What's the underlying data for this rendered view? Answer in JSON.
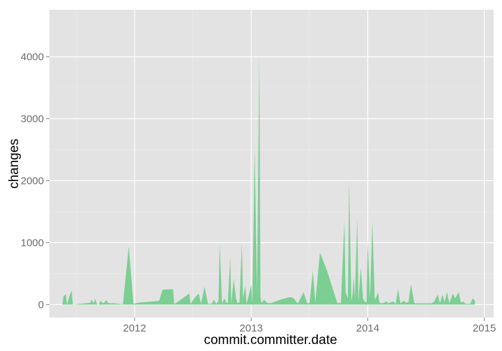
{
  "chart_data": {
    "type": "area",
    "title": "",
    "xlabel": "commit.committer.date",
    "ylabel": "changes",
    "x_ticks": [
      "2012",
      "2013",
      "2014",
      "2015"
    ],
    "y_ticks": [
      "0",
      "1000",
      "2000",
      "3000",
      "4000"
    ],
    "xlim": [
      2011.27,
      2015.08
    ],
    "ylim": [
      -210,
      4760
    ],
    "grid": true,
    "legend": "none",
    "colors": {
      "fill": "#7bcf92",
      "panel": "#e3e3e3",
      "grid_major": "#ffffff",
      "grid_minor": "#ececec"
    },
    "series": [
      {
        "x": [
          2011.38,
          2011.39,
          2011.41,
          2011.42,
          2011.44,
          2011.46,
          2011.47,
          2011.5,
          2011.62,
          2011.63,
          2011.65,
          2011.66,
          2011.68,
          2011.69,
          2011.71,
          2011.73,
          2011.76,
          2011.77,
          2011.79,
          2011.81,
          2011.83,
          2011.85,
          2011.9,
          2011.95,
          2011.99,
          2012.01,
          2012.03,
          2012.21,
          2012.24,
          2012.33,
          2012.34,
          2012.47,
          2012.48,
          2012.52,
          2012.55,
          2012.57,
          2012.6,
          2012.63,
          2012.66,
          2012.68,
          2012.7,
          2012.72,
          2012.73,
          2012.75,
          2012.77,
          2012.79,
          2012.8,
          2012.82,
          2012.83,
          2012.85,
          2012.87,
          2012.88,
          2012.9,
          2012.92,
          2012.93,
          2012.95,
          2012.96,
          2012.98,
          2013.0,
          2013.01,
          2013.03,
          2013.05,
          2013.07,
          2013.08,
          2013.09,
          2013.11,
          2013.13,
          2013.15,
          2013.18,
          2013.25,
          2013.33,
          2013.36,
          2013.4,
          2013.45,
          2013.48,
          2013.5,
          2013.53,
          2013.55,
          2013.59,
          2013.65,
          2013.74,
          2013.77,
          2013.8,
          2013.81,
          2013.83,
          2013.84,
          2013.86,
          2013.87,
          2013.88,
          2013.89,
          2013.91,
          2013.92,
          2013.94,
          2013.96,
          2013.97,
          2013.99,
          2014.0,
          2014.02,
          2014.04,
          2014.06,
          2014.08,
          2014.09,
          2014.1,
          2014.12,
          2014.14,
          2014.16,
          2014.18,
          2014.2,
          2014.22,
          2014.24,
          2014.26,
          2014.28,
          2014.31,
          2014.33,
          2014.35,
          2014.37,
          2014.4,
          2014.53,
          2014.55,
          2014.57,
          2014.6,
          2014.62,
          2014.64,
          2014.66,
          2014.68,
          2014.7,
          2014.73,
          2014.75,
          2014.78,
          2014.8,
          2014.82,
          2014.84,
          2014.88,
          2014.9,
          2014.92
        ],
        "y": [
          0,
          130,
          170,
          0,
          130,
          230,
          0,
          5,
          30,
          80,
          20,
          90,
          0,
          0,
          60,
          20,
          70,
          30,
          20,
          25,
          20,
          15,
          5,
          940,
          10,
          20,
          30,
          60,
          240,
          250,
          5,
          180,
          10,
          120,
          180,
          10,
          290,
          10,
          10,
          80,
          10,
          60,
          980,
          10,
          100,
          20,
          30,
          760,
          10,
          420,
          100,
          30,
          30,
          1000,
          100,
          300,
          10,
          150,
          320,
          20,
          2500,
          200,
          4000,
          100,
          20,
          80,
          40,
          20,
          30,
          80,
          120,
          110,
          15,
          200,
          20,
          20,
          540,
          30,
          840,
          550,
          20,
          30,
          1360,
          200,
          100,
          2000,
          50,
          180,
          450,
          100,
          1400,
          50,
          600,
          100,
          50,
          40,
          1000,
          100,
          1330,
          80,
          150,
          200,
          30,
          20,
          30,
          50,
          20,
          40,
          50,
          10,
          250,
          20,
          60,
          30,
          40,
          330,
          20,
          20,
          20,
          50,
          160,
          20,
          160,
          40,
          200,
          20,
          180,
          100,
          200,
          30,
          50,
          10,
          10,
          100,
          60
        ],
        "x_unit": "year"
      }
    ]
  }
}
